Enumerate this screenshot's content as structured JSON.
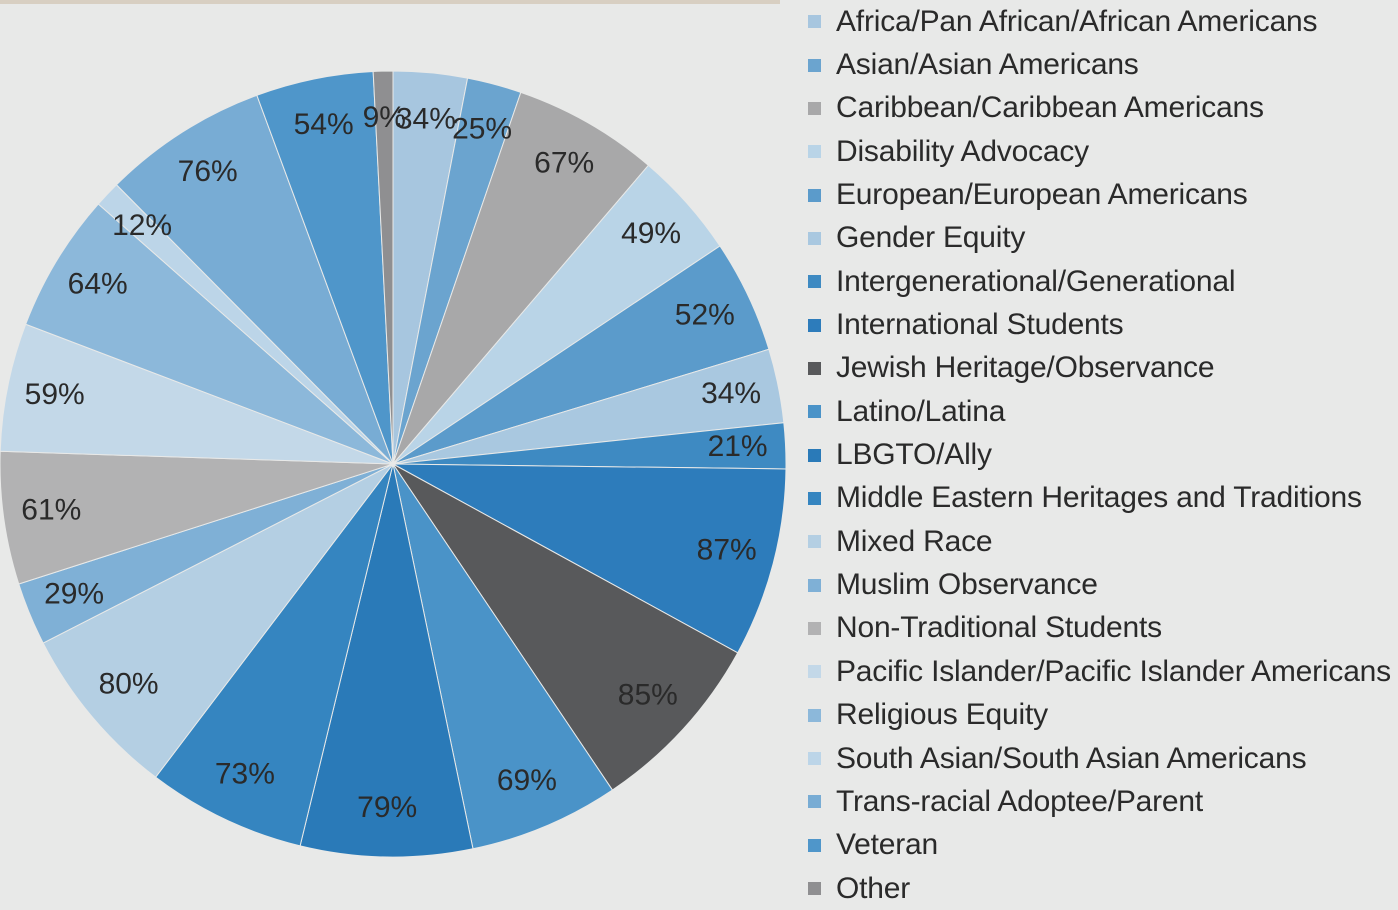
{
  "chart_data": {
    "type": "pie",
    "title": "",
    "slices": [
      {
        "label": "Africa/Pan African/African Americans",
        "value": 34,
        "color": "#a7c6df"
      },
      {
        "label": "Asian/Asian Americans",
        "value": 25,
        "color": "#6ba4cf"
      },
      {
        "label": "Caribbean/Caribbean Americans",
        "value": 67,
        "color": "#a8a8a9"
      },
      {
        "label": "Disability Advocacy",
        "value": 49,
        "color": "#b9d4e7"
      },
      {
        "label": "European/European Americans",
        "value": 52,
        "color": "#5b9bcb"
      },
      {
        "label": "Gender Equity",
        "value": 34,
        "color": "#a9c8e0"
      },
      {
        "label": "Intergenerational/Generational",
        "value": 21,
        "color": "#3e8ac2"
      },
      {
        "label": "International Students",
        "value": 87,
        "color": "#2d7cbb"
      },
      {
        "label": "Jewish Heritage/Observance",
        "value": 85,
        "color": "#58595b"
      },
      {
        "label": "Latino/Latina",
        "value": 69,
        "color": "#4a93c8"
      },
      {
        "label": "LBGTO/Ally",
        "value": 79,
        "color": "#2a7ab8"
      },
      {
        "label": "Middle Eastern Heritages and Traditions",
        "value": 73,
        "color": "#3585c0"
      },
      {
        "label": "Mixed Race",
        "value": 80,
        "color": "#b4cfe3"
      },
      {
        "label": "Muslim Observance",
        "value": 29,
        "color": "#7fb0d6"
      },
      {
        "label": "Non-Traditional Students",
        "value": 61,
        "color": "#b2b2b3"
      },
      {
        "label": "Pacific Islander/Pacific Islander Americans",
        "value": 59,
        "color": "#c3d8e8"
      },
      {
        "label": "Religious Equity",
        "value": 64,
        "color": "#8cb8da"
      },
      {
        "label": "South Asian/South Asian Americans",
        "value": 12,
        "color": "#bcd5e8"
      },
      {
        "label": "Trans-racial Adoptee/Parent",
        "value": 76,
        "color": "#78acd4"
      },
      {
        "label": "Veteran",
        "value": 54,
        "color": "#4f96ca"
      },
      {
        "label": "Other",
        "value": 9,
        "color": "#8f8f91"
      }
    ],
    "value_suffix": "%",
    "legend": "right"
  }
}
